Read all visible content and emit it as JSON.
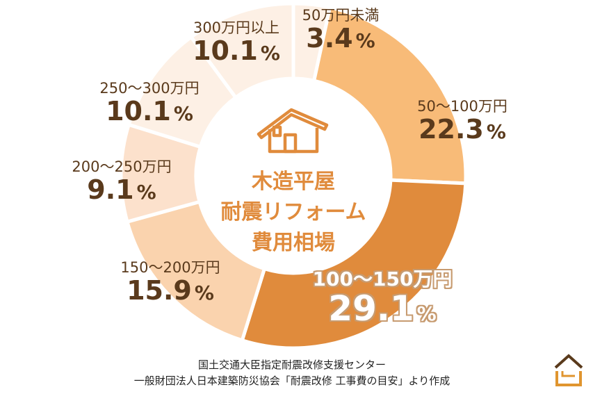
{
  "chart_data": {
    "type": "pie",
    "donut": true,
    "center_title": [
      "木造平屋",
      "耐震リフォーム",
      "費用相場"
    ],
    "categories": [
      "50万円未満",
      "50〜100万円",
      "100〜150万円",
      "150〜200万円",
      "200〜250万円",
      "250〜300万円",
      "300万円以上"
    ],
    "values": [
      3.4,
      22.3,
      29.1,
      15.9,
      9.1,
      10.1,
      10.1
    ],
    "value_labels": [
      "3.4",
      "22.3",
      "29.1",
      "15.9",
      "9.1",
      "10.1",
      "10.1"
    ],
    "unit": "%",
    "colors": [
      "#fdf0e5",
      "#f8bb78",
      "#e08b3c",
      "#fad3ae",
      "#fce1cc",
      "#fdf0e5",
      "#fdf0e5"
    ],
    "start": "12 o'clock",
    "direction": "clockwise"
  },
  "source": [
    "国土交通大臣指定耐震改修支援センター",
    "一般財団法人日本建築防災協会「耐震改修 工事費の目安」より作成"
  ],
  "icons": {
    "center": "house-icon",
    "corner": "logo-house-icon"
  }
}
